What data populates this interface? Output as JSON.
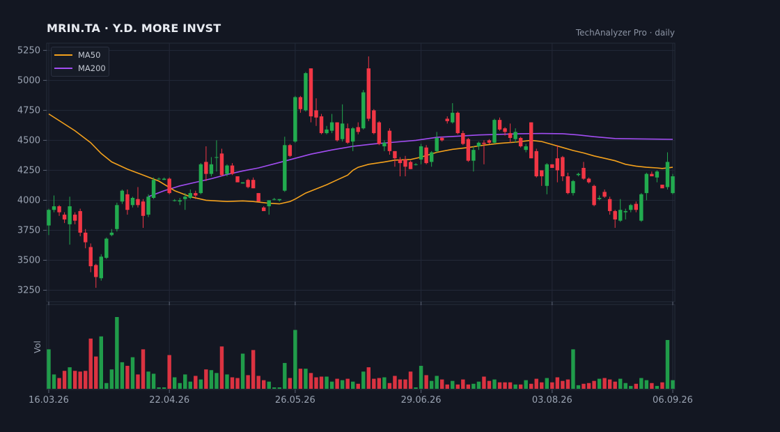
{
  "header": {
    "title": "MRIN.TA  ·  Y.D. MORE INVST",
    "subtitle": "TechAnalyzer Pro · daily"
  },
  "colors": {
    "background": "#131722",
    "grid": "#232938",
    "up": "#22ab4f",
    "down": "#f23645",
    "ma50": "#f4a11c",
    "ma200": "#a24df2",
    "text": "#9aa3b2"
  },
  "chart_data": {
    "type": "candlestick",
    "price_axis": {
      "ticks": [
        3250,
        3500,
        3750,
        4000,
        4250,
        4500,
        4750,
        5000,
        5250
      ],
      "range": [
        3160,
        5310
      ]
    },
    "volume_axis_label": "Vol",
    "x_ticks": [
      {
        "label": "16.03.26",
        "index": 0
      },
      {
        "label": "22.04.26",
        "index": 23
      },
      {
        "label": "26.05.26",
        "index": 47
      },
      {
        "label": "29.06.26",
        "index": 71
      },
      {
        "label": "03.08.26",
        "index": 96
      },
      {
        "label": "06.09.26",
        "index": 119
      }
    ],
    "legend": [
      {
        "name": "MA50",
        "color": "#f4a11c"
      },
      {
        "name": "MA200",
        "color": "#a24df2"
      }
    ],
    "candles": [
      [
        3790,
        3920,
        3710,
        3930,
        0.55
      ],
      [
        3920,
        3950,
        3900,
        4040,
        0.2
      ],
      [
        3950,
        3900,
        3870,
        3960,
        0.15
      ],
      [
        3880,
        3840,
        3810,
        3900,
        0.25
      ],
      [
        3800,
        3950,
        3630,
        4030,
        0.3
      ],
      [
        3880,
        3830,
        3800,
        3900,
        0.25
      ],
      [
        3910,
        3730,
        3700,
        3930,
        0.24
      ],
      [
        3730,
        3650,
        3600,
        3760,
        0.25
      ],
      [
        3610,
        3450,
        3400,
        3640,
        0.7
      ],
      [
        3460,
        3360,
        3270,
        3470,
        0.45
      ],
      [
        3350,
        3530,
        3330,
        3550,
        0.73
      ],
      [
        3520,
        3680,
        3510,
        3690,
        0.08
      ],
      [
        3710,
        3730,
        3700,
        3760,
        0.27
      ],
      [
        3760,
        3960,
        3740,
        3980,
        1.0
      ],
      [
        3990,
        4080,
        3970,
        4090,
        0.37
      ],
      [
        4050,
        3920,
        3880,
        4090,
        0.32
      ],
      [
        3960,
        4020,
        3940,
        4030,
        0.44
      ],
      [
        4010,
        3960,
        3940,
        4110,
        0.2
      ],
      [
        3990,
        3870,
        3770,
        4010,
        0.55
      ],
      [
        3880,
        4030,
        3860,
        4050,
        0.24
      ],
      [
        4020,
        4170,
        4010,
        4190,
        0.21
      ],
      [
        4180,
        4180,
        4170,
        4190,
        0.0
      ],
      [
        4170,
        4180,
        4170,
        4190,
        0.0
      ],
      [
        4180,
        4060,
        4050,
        4190,
        0.47
      ],
      [
        4000,
        4000,
        3990,
        4010,
        0.16
      ],
      [
        3990,
        4000,
        3960,
        4020,
        0.08
      ],
      [
        4010,
        4030,
        3920,
        4060,
        0.2
      ],
      [
        4020,
        4060,
        4010,
        4090,
        0.1
      ],
      [
        4060,
        4040,
        4010,
        4080,
        0.18
      ],
      [
        4060,
        4300,
        4050,
        4310,
        0.13
      ],
      [
        4320,
        4220,
        4160,
        4450,
        0.27
      ],
      [
        4220,
        4300,
        4200,
        4360,
        0.26
      ],
      [
        4360,
        4360,
        4240,
        4500,
        0.22
      ],
      [
        4390,
        4210,
        4200,
        4430,
        0.59
      ],
      [
        4220,
        4290,
        4200,
        4300,
        0.2
      ],
      [
        4290,
        4220,
        4210,
        4310,
        0.16
      ],
      [
        4200,
        4150,
        4150,
        4200,
        0.15
      ],
      [
        4140,
        4150,
        4140,
        4150,
        0.49
      ],
      [
        4170,
        4110,
        4100,
        4180,
        0.19
      ],
      [
        4170,
        4100,
        4100,
        4190,
        0.54
      ],
      [
        4060,
        3990,
        3990,
        4060,
        0.18
      ],
      [
        3940,
        3910,
        3910,
        3950,
        0.12
      ],
      [
        3950,
        4000,
        3880,
        4000,
        0.1
      ],
      [
        4010,
        4010,
        4000,
        4020,
        0.0
      ],
      [
        4000,
        4010,
        3990,
        4010,
        0.0
      ],
      [
        4080,
        4460,
        4070,
        4530,
        0.36
      ],
      [
        4460,
        4370,
        4360,
        4470,
        0.15
      ],
      [
        4490,
        4860,
        4480,
        4870,
        0.82
      ],
      [
        4860,
        4760,
        4730,
        4870,
        0.28
      ],
      [
        4750,
        5060,
        4740,
        5070,
        0.28
      ],
      [
        5100,
        4700,
        4650,
        5100,
        0.22
      ],
      [
        4750,
        4690,
        4620,
        4850,
        0.16
      ],
      [
        4700,
        4560,
        4550,
        4720,
        0.17
      ],
      [
        4560,
        4590,
        4550,
        4620,
        0.17
      ],
      [
        4580,
        4650,
        4560,
        4720,
        0.1
      ],
      [
        4650,
        4500,
        4490,
        4650,
        0.14
      ],
      [
        4510,
        4640,
        4490,
        4800,
        0.12
      ],
      [
        4600,
        4480,
        4470,
        4640,
        0.14
      ],
      [
        4490,
        4600,
        4410,
        4610,
        0.1
      ],
      [
        4610,
        4570,
        4550,
        4650,
        0.07
      ],
      [
        4600,
        4900,
        4590,
        4920,
        0.24
      ],
      [
        5100,
        4680,
        4660,
        5200,
        0.3
      ],
      [
        4750,
        4560,
        4550,
        4760,
        0.14
      ],
      [
        4650,
        4470,
        4460,
        4660,
        0.15
      ],
      [
        4450,
        4480,
        4410,
        4500,
        0.16
      ],
      [
        4580,
        4410,
        4380,
        4600,
        0.08
      ],
      [
        4410,
        4350,
        4280,
        4410,
        0.18
      ],
      [
        4340,
        4310,
        4200,
        4360,
        0.13
      ],
      [
        4340,
        4280,
        4200,
        4370,
        0.13
      ],
      [
        4320,
        4260,
        4260,
        4330,
        0.24
      ],
      [
        4300,
        4300,
        4290,
        4310,
        0.0
      ],
      [
        4340,
        4450,
        4300,
        4470,
        0.32
      ],
      [
        4440,
        4310,
        4300,
        4460,
        0.19
      ],
      [
        4320,
        4400,
        4280,
        4410,
        0.11
      ],
      [
        4410,
        4520,
        4400,
        4570,
        0.18
      ],
      [
        4520,
        4500,
        4490,
        4530,
        0.13
      ],
      [
        4680,
        4660,
        4640,
        4700,
        0.06
      ],
      [
        4650,
        4730,
        4640,
        4810,
        0.11
      ],
      [
        4730,
        4560,
        4550,
        4740,
        0.06
      ],
      [
        4560,
        4470,
        4460,
        4580,
        0.13
      ],
      [
        4510,
        4330,
        4320,
        4520,
        0.06
      ],
      [
        4330,
        4420,
        4240,
        4450,
        0.07
      ],
      [
        4450,
        4480,
        4420,
        4490,
        0.1
      ],
      [
        4480,
        4470,
        4300,
        4500,
        0.17
      ],
      [
        4500,
        4480,
        4470,
        4510,
        0.11
      ],
      [
        4480,
        4670,
        4470,
        4680,
        0.13
      ],
      [
        4670,
        4590,
        4580,
        4690,
        0.09
      ],
      [
        4600,
        4570,
        4540,
        4610,
        0.09
      ],
      [
        4560,
        4520,
        4480,
        4640,
        0.09
      ],
      [
        4510,
        4570,
        4480,
        4600,
        0.06
      ],
      [
        4520,
        4450,
        4440,
        4530,
        0.06
      ],
      [
        4420,
        4450,
        4400,
        4470,
        0.12
      ],
      [
        4650,
        4350,
        4350,
        4650,
        0.07
      ],
      [
        4410,
        4200,
        4190,
        4430,
        0.14
      ],
      [
        4250,
        4200,
        4120,
        4250,
        0.09
      ],
      [
        4120,
        4300,
        4050,
        4310,
        0.15
      ],
      [
        4300,
        4270,
        4270,
        4300,
        0.09
      ],
      [
        4350,
        4250,
        4150,
        4460,
        0.16
      ],
      [
        4360,
        4200,
        4160,
        4370,
        0.11
      ],
      [
        4200,
        4060,
        4050,
        4230,
        0.13
      ],
      [
        4060,
        4160,
        4040,
        4170,
        0.55
      ],
      [
        4210,
        4220,
        4200,
        4230,
        0.05
      ],
      [
        4270,
        4180,
        4170,
        4320,
        0.07
      ],
      [
        4180,
        4150,
        4140,
        4190,
        0.08
      ],
      [
        4120,
        3960,
        3950,
        4130,
        0.11
      ],
      [
        4010,
        4020,
        4000,
        4040,
        0.14
      ],
      [
        4070,
        4030,
        4020,
        4090,
        0.15
      ],
      [
        4010,
        3910,
        3880,
        4030,
        0.13
      ],
      [
        3910,
        3840,
        3770,
        3920,
        0.1
      ],
      [
        3830,
        3920,
        3820,
        4010,
        0.14
      ],
      [
        3900,
        3910,
        3840,
        3930,
        0.08
      ],
      [
        3920,
        3960,
        3900,
        3970,
        0.04
      ],
      [
        3970,
        3920,
        3900,
        3990,
        0.07
      ],
      [
        3830,
        4050,
        3820,
        4060,
        0.15
      ],
      [
        4060,
        4220,
        4000,
        4230,
        0.12
      ],
      [
        4220,
        4200,
        4200,
        4240,
        0.08
      ],
      [
        4190,
        4240,
        4150,
        4250,
        0.04
      ],
      [
        4130,
        4100,
        4100,
        4130,
        0.09
      ],
      [
        4110,
        4320,
        4090,
        4400,
        0.68
      ],
      [
        4060,
        4200,
        4050,
        4220,
        0.12
      ]
    ],
    "ma50": [
      [
        0,
        4720
      ],
      [
        5,
        4580
      ],
      [
        8,
        4480
      ],
      [
        10,
        4390
      ],
      [
        12,
        4320
      ],
      [
        15,
        4260
      ],
      [
        18,
        4210
      ],
      [
        21,
        4160
      ],
      [
        24,
        4080
      ],
      [
        27,
        4030
      ],
      [
        30,
        4000
      ],
      [
        34,
        3990
      ],
      [
        37,
        3995
      ],
      [
        39,
        3990
      ],
      [
        42,
        3975
      ],
      [
        44,
        3970
      ],
      [
        46,
        3990
      ],
      [
        47,
        4010
      ],
      [
        49,
        4060
      ],
      [
        51,
        4095
      ],
      [
        53,
        4130
      ],
      [
        55,
        4170
      ],
      [
        57,
        4210
      ],
      [
        58,
        4250
      ],
      [
        59,
        4275
      ],
      [
        61,
        4300
      ],
      [
        64,
        4320
      ],
      [
        66,
        4335
      ],
      [
        69,
        4340
      ],
      [
        71,
        4360
      ],
      [
        74,
        4400
      ],
      [
        77,
        4425
      ],
      [
        80,
        4440
      ],
      [
        83,
        4460
      ],
      [
        86,
        4475
      ],
      [
        89,
        4485
      ],
      [
        92,
        4500
      ],
      [
        94,
        4490
      ],
      [
        96,
        4465
      ],
      [
        98,
        4440
      ],
      [
        100,
        4415
      ],
      [
        102,
        4395
      ],
      [
        104,
        4370
      ],
      [
        106,
        4350
      ],
      [
        108,
        4330
      ],
      [
        110,
        4300
      ],
      [
        112,
        4285
      ],
      [
        114,
        4275
      ],
      [
        116,
        4270
      ],
      [
        117,
        4265
      ],
      [
        119,
        4275
      ]
    ],
    "ma200": [
      [
        19,
        4030
      ],
      [
        22,
        4080
      ],
      [
        25,
        4120
      ],
      [
        28,
        4150
      ],
      [
        31,
        4180
      ],
      [
        34,
        4215
      ],
      [
        37,
        4245
      ],
      [
        40,
        4270
      ],
      [
        44,
        4315
      ],
      [
        47,
        4350
      ],
      [
        50,
        4385
      ],
      [
        54,
        4420
      ],
      [
        58,
        4450
      ],
      [
        62,
        4470
      ],
      [
        66,
        4485
      ],
      [
        70,
        4500
      ],
      [
        74,
        4525
      ],
      [
        78,
        4535
      ],
      [
        82,
        4545
      ],
      [
        86,
        4550
      ],
      [
        90,
        4555
      ],
      [
        94,
        4557
      ],
      [
        98,
        4555
      ],
      [
        101,
        4545
      ],
      [
        104,
        4530
      ],
      [
        108,
        4515
      ],
      [
        112,
        4512
      ],
      [
        116,
        4510
      ],
      [
        119,
        4508
      ]
    ]
  }
}
